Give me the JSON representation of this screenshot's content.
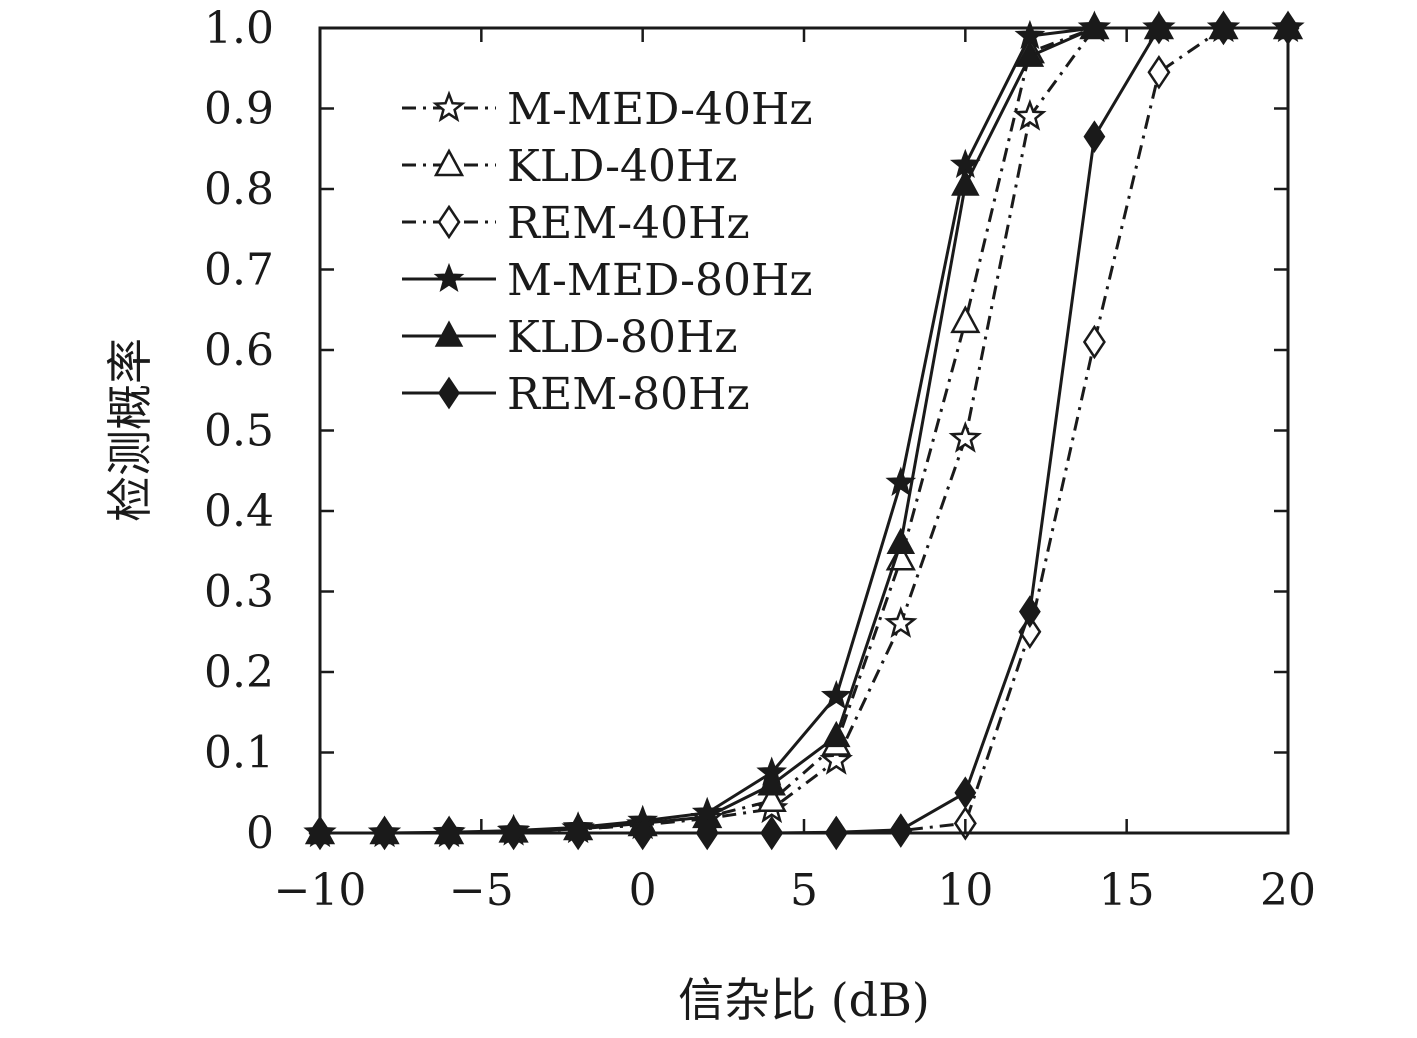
{
  "chart_data": {
    "type": "line",
    "title": "",
    "xlabel": "信杂比 (dB)",
    "ylabel": "检测概率",
    "xlim": [
      -10,
      20
    ],
    "ylim": [
      0,
      1
    ],
    "grid": false,
    "legend_position": "top-left",
    "x_ticks": [
      "−10",
      "−5",
      "0",
      "5",
      "10",
      "15",
      "20"
    ],
    "y_ticks": [
      "0",
      "0.1",
      "0.2",
      "0.3",
      "0.4",
      "0.5",
      "0.6",
      "0.7",
      "0.8",
      "0.9",
      "1.0"
    ],
    "x": [
      -10,
      -8,
      -6,
      -4,
      -2,
      0,
      2,
      4,
      6,
      8,
      10,
      12,
      14,
      16,
      18,
      20
    ],
    "series": [
      {
        "name": "M-MED-40Hz",
        "line": "dash-dot",
        "marker": "star",
        "fill": "hollow",
        "values": [
          0,
          0,
          0,
          0.002,
          0.005,
          0.01,
          0.018,
          0.03,
          0.09,
          0.26,
          0.49,
          0.89,
          1.0,
          1.0,
          1.0,
          1.0
        ]
      },
      {
        "name": "KLD-40Hz",
        "line": "dash-dot",
        "marker": "triangle",
        "fill": "hollow",
        "values": [
          0,
          0,
          0,
          0.002,
          0.005,
          0.01,
          0.02,
          0.04,
          0.11,
          0.34,
          0.635,
          0.97,
          1.0,
          1.0,
          1.0,
          1.0
        ]
      },
      {
        "name": "REM-40Hz",
        "line": "dash-dot",
        "marker": "diamond",
        "fill": "hollow",
        "values": [
          0,
          0,
          0,
          0,
          0,
          0,
          0,
          0,
          0,
          0.003,
          0.012,
          0.25,
          0.61,
          0.945,
          1.0,
          1.0
        ]
      },
      {
        "name": "M-MED-80Hz",
        "line": "solid",
        "marker": "star",
        "fill": "filled",
        "values": [
          0,
          0,
          0.001,
          0.003,
          0.007,
          0.015,
          0.025,
          0.075,
          0.17,
          0.435,
          0.83,
          0.99,
          1.0,
          1.0,
          1.0,
          1.0
        ]
      },
      {
        "name": "KLD-80Hz",
        "line": "solid",
        "marker": "triangle",
        "fill": "filled",
        "values": [
          0,
          0,
          0,
          0.002,
          0.005,
          0.012,
          0.02,
          0.06,
          0.12,
          0.36,
          0.805,
          0.965,
          1.0,
          1.0,
          1.0,
          1.0
        ]
      },
      {
        "name": "REM-80Hz",
        "line": "solid",
        "marker": "diamond",
        "fill": "filled",
        "values": [
          0,
          0,
          0,
          0,
          0,
          0,
          0,
          0,
          0.001,
          0.004,
          0.05,
          0.275,
          0.865,
          1.0,
          1.0,
          1.0
        ]
      }
    ],
    "colors": {
      "line": "#1a1a1a",
      "background": "#ffffff"
    }
  }
}
